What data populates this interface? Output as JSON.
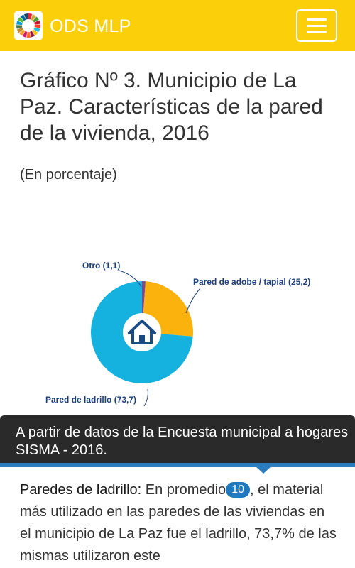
{
  "header": {
    "brand": "ODS MLP",
    "logo_icon": "sdg-color-wheel-icon",
    "menu_icon": "hamburger-menu-icon",
    "colors": {
      "bar": "#fccf0b",
      "text": "#ffffff"
    }
  },
  "main": {
    "title": "Gráfico Nº 3. Municipio de La Paz. Características de la pared de la vivienda, 2016",
    "subtitle": "(En porcentaje)"
  },
  "chart_data": {
    "type": "pie",
    "center_icon": "house-icon",
    "slices": [
      {
        "label": "Otro (1,1)",
        "value": 1.1,
        "color": "#7b4a8f"
      },
      {
        "label": "Pared de adobe / tapial (25,2)",
        "value": 25.2,
        "color": "#fbb20d"
      },
      {
        "label": "Pared de ladrillo (73,7)",
        "value": 73.7,
        "color": "#15b2e0"
      }
    ]
  },
  "tooltip": {
    "text": "A partir de datos de la Encuesta municipal a hogares SISMA - 2016.",
    "accent": "#2b7bbf"
  },
  "body": {
    "lead": "Paredes de ladrillo:",
    "text_before": " En promedio",
    "footnote_number": "10",
    "text_after": ", el material más utilizado en las paredes de las viviendas en el municipio de La Paz fue el ladrillo, 73,7% de las mismas utilizaron este"
  }
}
